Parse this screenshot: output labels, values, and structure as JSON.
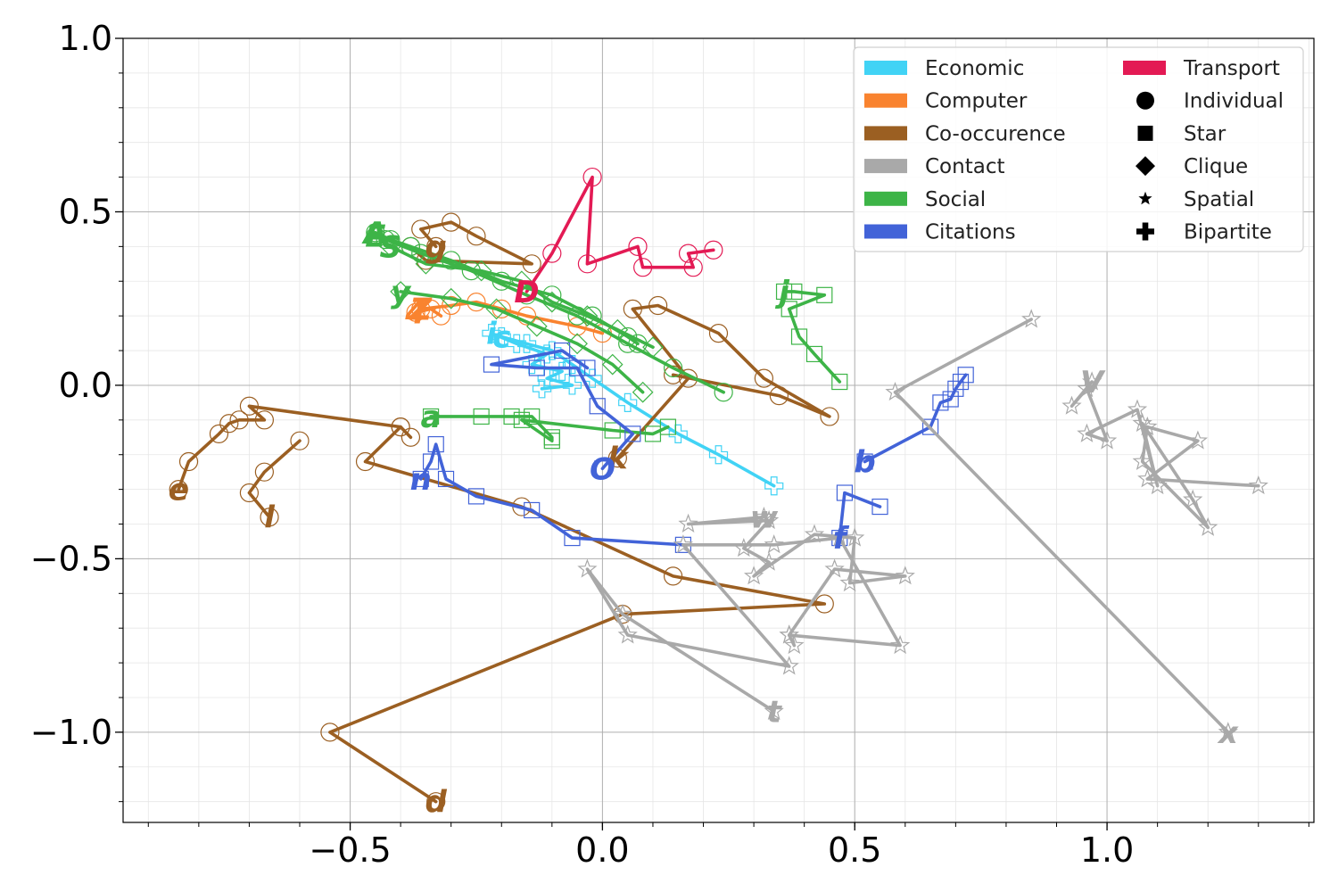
{
  "chart_data": {
    "type": "line",
    "title": "",
    "xlabel": "",
    "ylabel": "",
    "xlim": [
      -0.95,
      1.41
    ],
    "ylim": [
      -1.26,
      1.0
    ],
    "x_ticks": [
      -0.5,
      0.0,
      0.5,
      1.0
    ],
    "y_ticks": [
      1.0,
      0.5,
      0.0,
      -0.5,
      -1.0
    ],
    "x_tick_labels": [
      "−0.5",
      "0.0",
      "0.5",
      "1.0"
    ],
    "y_tick_labels": [
      "1.0",
      "0.5",
      "0.0",
      "−0.5",
      "−1.0"
    ],
    "grid": true,
    "legend": {
      "position": "top-right",
      "categories": [
        {
          "name": "Economic",
          "color": "#41d3f5"
        },
        {
          "name": "Computer",
          "color": "#f9832f"
        },
        {
          "name": "Co-occurence",
          "color": "#9b5f22"
        },
        {
          "name": "Contact",
          "color": "#a9a9a9"
        },
        {
          "name": "Social",
          "color": "#3db447"
        },
        {
          "name": "Citations",
          "color": "#4263d8"
        },
        {
          "name": "Transport",
          "color": "#e31a54"
        }
      ],
      "markers": [
        {
          "name": "Individual",
          "shape": "circle"
        },
        {
          "name": "Star",
          "shape": "square"
        },
        {
          "name": "Clique",
          "shape": "diamond"
        },
        {
          "name": "Spatial",
          "shape": "star"
        },
        {
          "name": "Bipartite",
          "shape": "plus"
        }
      ]
    },
    "series": [
      {
        "label": "D",
        "category": "Transport",
        "marker": "circle",
        "points": [
          [
            -0.15,
            0.27
          ],
          [
            -0.1,
            0.38
          ],
          [
            -0.02,
            0.6
          ],
          [
            -0.03,
            0.35
          ],
          [
            0.07,
            0.4
          ],
          [
            0.08,
            0.34
          ],
          [
            0.18,
            0.34
          ],
          [
            0.17,
            0.38
          ],
          [
            0.22,
            0.39
          ]
        ]
      },
      {
        "label": "c",
        "category": "Economic",
        "marker": "plus",
        "points": [
          [
            -0.2,
            0.14
          ],
          [
            -0.15,
            0.12
          ],
          [
            -0.1,
            0.1
          ],
          [
            -0.06,
            0.06
          ],
          [
            -0.02,
            0.02
          ],
          [
            0.05,
            -0.05
          ],
          [
            0.15,
            -0.14
          ],
          [
            0.23,
            -0.2
          ],
          [
            0.34,
            -0.29
          ]
        ]
      },
      {
        "label": "i",
        "category": "Economic",
        "marker": "plus",
        "points": [
          [
            -0.22,
            0.15
          ],
          [
            -0.17,
            0.12
          ],
          [
            -0.11,
            0.09
          ],
          [
            -0.14,
            0.06
          ],
          [
            -0.08,
            0.04
          ],
          [
            -0.11,
            0.02
          ],
          [
            -0.06,
            0.0
          ],
          [
            -0.12,
            -0.01
          ]
        ]
      },
      {
        "label": "Z",
        "category": "Computer",
        "marker": "circle",
        "points": [
          [
            -0.36,
            0.22
          ],
          [
            -0.3,
            0.23
          ],
          [
            -0.25,
            0.24
          ],
          [
            -0.2,
            0.22
          ],
          [
            -0.15,
            0.2
          ],
          [
            -0.05,
            0.17
          ],
          [
            0.0,
            0.15
          ]
        ]
      },
      {
        "label": "4",
        "category": "Computer",
        "marker": "circle",
        "points": [
          [
            -0.37,
            0.21
          ],
          [
            -0.34,
            0.22
          ],
          [
            -0.32,
            0.2
          ]
        ]
      },
      {
        "label": "e",
        "category": "Co-occurence",
        "marker": "circle",
        "points": [
          [
            -0.84,
            -0.3
          ],
          [
            -0.82,
            -0.22
          ],
          [
            -0.76,
            -0.14
          ],
          [
            -0.74,
            -0.11
          ],
          [
            -0.72,
            -0.1
          ],
          [
            -0.67,
            -0.1
          ],
          [
            -0.7,
            -0.06
          ],
          [
            -0.4,
            -0.12
          ],
          [
            -0.38,
            -0.15
          ]
        ]
      },
      {
        "label": "l",
        "category": "Co-occurence",
        "marker": "circle",
        "points": [
          [
            -0.66,
            -0.38
          ],
          [
            -0.7,
            -0.31
          ],
          [
            -0.67,
            -0.25
          ],
          [
            -0.6,
            -0.16
          ]
        ]
      },
      {
        "label": "d",
        "category": "Co-occurence",
        "marker": "circle",
        "points": [
          [
            -0.33,
            -1.2
          ],
          [
            -0.54,
            -1.0
          ],
          [
            0.04,
            -0.66
          ],
          [
            0.44,
            -0.63
          ],
          [
            0.14,
            -0.55
          ],
          [
            -0.16,
            -0.35
          ],
          [
            -0.47,
            -0.22
          ],
          [
            -0.4,
            -0.12
          ]
        ]
      },
      {
        "label": "k",
        "category": "Co-occurence",
        "marker": "circle",
        "points": [
          [
            0.03,
            -0.21
          ],
          [
            0.17,
            0.02
          ],
          [
            0.06,
            0.22
          ],
          [
            0.11,
            0.23
          ],
          [
            0.23,
            0.15
          ],
          [
            0.32,
            0.02
          ],
          [
            0.45,
            -0.09
          ],
          [
            0.35,
            -0.03
          ],
          [
            0.14,
            0.03
          ]
        ]
      },
      {
        "label": "g",
        "category": "Co-occurence",
        "marker": "circle",
        "points": [
          [
            -0.33,
            0.4
          ],
          [
            -0.36,
            0.45
          ],
          [
            -0.3,
            0.47
          ],
          [
            -0.25,
            0.43
          ],
          [
            -0.14,
            0.35
          ],
          [
            -0.35,
            0.36
          ],
          [
            -0.38,
            0.4
          ]
        ]
      },
      {
        "label": "a",
        "category": "Social",
        "marker": "square",
        "points": [
          [
            -0.34,
            -0.09
          ],
          [
            -0.24,
            -0.09
          ],
          [
            -0.18,
            -0.09
          ],
          [
            -0.14,
            -0.09
          ],
          [
            -0.1,
            -0.15
          ],
          [
            -0.1,
            -0.16
          ],
          [
            -0.16,
            -0.1
          ],
          [
            0.02,
            -0.13
          ],
          [
            0.1,
            -0.14
          ],
          [
            0.13,
            -0.12
          ]
        ]
      },
      {
        "label": "j",
        "category": "Social",
        "marker": "square",
        "points": [
          [
            0.36,
            0.27
          ],
          [
            0.38,
            0.27
          ],
          [
            0.44,
            0.26
          ],
          [
            0.37,
            0.22
          ],
          [
            0.39,
            0.14
          ],
          [
            0.42,
            0.09
          ],
          [
            0.47,
            0.01
          ]
        ]
      },
      {
        "label": "A",
        "category": "Social",
        "marker": "circle",
        "points": [
          [
            -0.45,
            0.44
          ],
          [
            -0.42,
            0.42
          ],
          [
            -0.38,
            0.4
          ],
          [
            -0.3,
            0.36
          ],
          [
            -0.2,
            0.3
          ],
          [
            -0.1,
            0.26
          ],
          [
            -0.02,
            0.2
          ],
          [
            0.05,
            0.14
          ],
          [
            0.07,
            0.12
          ]
        ]
      },
      {
        "label": "E",
        "category": "Social",
        "marker": "circle",
        "points": [
          [
            -0.45,
            0.43
          ],
          [
            -0.43,
            0.42
          ],
          [
            -0.36,
            0.38
          ],
          [
            -0.26,
            0.33
          ],
          [
            -0.15,
            0.26
          ],
          [
            -0.05,
            0.2
          ],
          [
            0.05,
            0.12
          ],
          [
            0.14,
            0.05
          ],
          [
            0.24,
            -0.02
          ]
        ]
      },
      {
        "label": "y",
        "category": "Social",
        "marker": "diamond",
        "points": [
          [
            -0.4,
            0.27
          ],
          [
            -0.3,
            0.25
          ],
          [
            -0.21,
            0.22
          ],
          [
            -0.13,
            0.17
          ],
          [
            -0.05,
            0.12
          ],
          [
            0.02,
            0.06
          ],
          [
            0.08,
            -0.02
          ]
        ]
      },
      {
        "label": "S",
        "category": "Social",
        "marker": "diamond",
        "points": [
          [
            -0.42,
            0.4
          ],
          [
            -0.35,
            0.35
          ],
          [
            -0.24,
            0.33
          ],
          [
            -0.16,
            0.3
          ],
          [
            -0.1,
            0.24
          ],
          [
            -0.03,
            0.2
          ],
          [
            0.03,
            0.16
          ],
          [
            0.1,
            0.11
          ]
        ]
      },
      {
        "label": "n",
        "category": "Citations",
        "marker": "square",
        "points": [
          [
            -0.36,
            -0.27
          ],
          [
            -0.34,
            -0.22
          ],
          [
            -0.33,
            -0.17
          ],
          [
            -0.31,
            -0.27
          ],
          [
            -0.25,
            -0.32
          ],
          [
            -0.14,
            -0.36
          ],
          [
            -0.06,
            -0.44
          ],
          [
            0.16,
            -0.46
          ]
        ]
      },
      {
        "label": "b",
        "category": "Citations",
        "marker": "square",
        "points": [
          [
            0.52,
            -0.22
          ],
          [
            0.65,
            -0.12
          ],
          [
            0.67,
            -0.05
          ],
          [
            0.69,
            -0.04
          ],
          [
            0.7,
            -0.01
          ],
          [
            0.71,
            0.01
          ],
          [
            0.72,
            0.03
          ]
        ]
      },
      {
        "label": "f",
        "category": "Citations",
        "marker": "square",
        "points": [
          [
            0.47,
            -0.44
          ],
          [
            0.48,
            -0.31
          ],
          [
            0.55,
            -0.35
          ]
        ]
      },
      {
        "label": "O",
        "category": "Citations",
        "marker": "square",
        "points": [
          [
            0.0,
            -0.24
          ],
          [
            0.06,
            -0.14
          ],
          [
            -0.01,
            -0.06
          ],
          [
            -0.05,
            0.05
          ],
          [
            -0.13,
            0.05
          ],
          [
            -0.22,
            0.06
          ],
          [
            -0.08,
            0.1
          ],
          [
            -0.03,
            0.05
          ]
        ]
      },
      {
        "label": "t",
        "category": "Contact",
        "marker": "star",
        "points": [
          [
            0.34,
            -0.94
          ],
          [
            0.04,
            -0.66
          ],
          [
            -0.03,
            -0.53
          ],
          [
            0.05,
            -0.72
          ],
          [
            0.37,
            -0.81
          ],
          [
            0.16,
            -0.46
          ],
          [
            0.34,
            -0.46
          ],
          [
            0.47,
            -0.44
          ],
          [
            0.59,
            -0.75
          ],
          [
            0.37,
            -0.72
          ]
        ]
      },
      {
        "label": "w",
        "category": "Contact",
        "marker": "star",
        "points": [
          [
            0.32,
            -0.38
          ],
          [
            0.17,
            -0.4
          ],
          [
            0.33,
            -0.39
          ],
          [
            0.28,
            -0.47
          ],
          [
            0.33,
            -0.51
          ],
          [
            0.3,
            -0.55
          ],
          [
            0.42,
            -0.43
          ],
          [
            0.5,
            -0.44
          ],
          [
            0.49,
            -0.57
          ],
          [
            0.6,
            -0.55
          ],
          [
            0.46,
            -0.53
          ],
          [
            0.37,
            -0.72
          ],
          [
            0.38,
            -0.75
          ]
        ]
      },
      {
        "label": "V",
        "category": "Contact",
        "marker": "star",
        "points": [
          [
            0.97,
            0.01
          ],
          [
            0.93,
            -0.06
          ],
          [
            0.96,
            -0.01
          ],
          [
            1.0,
            -0.16
          ],
          [
            0.96,
            -0.14
          ],
          [
            1.06,
            -0.07
          ],
          [
            1.1,
            -0.29
          ],
          [
            1.07,
            -0.11
          ],
          [
            1.17,
            -0.33
          ],
          [
            1.2,
            -0.41
          ],
          [
            1.07,
            -0.22
          ],
          [
            1.08,
            -0.12
          ],
          [
            1.18,
            -0.16
          ],
          [
            1.08,
            -0.27
          ],
          [
            1.3,
            -0.29
          ]
        ]
      },
      {
        "label": "x",
        "category": "Contact",
        "marker": "star",
        "points": [
          [
            1.24,
            -1.0
          ],
          [
            0.58,
            -0.02
          ],
          [
            0.85,
            0.19
          ]
        ]
      }
    ]
  }
}
